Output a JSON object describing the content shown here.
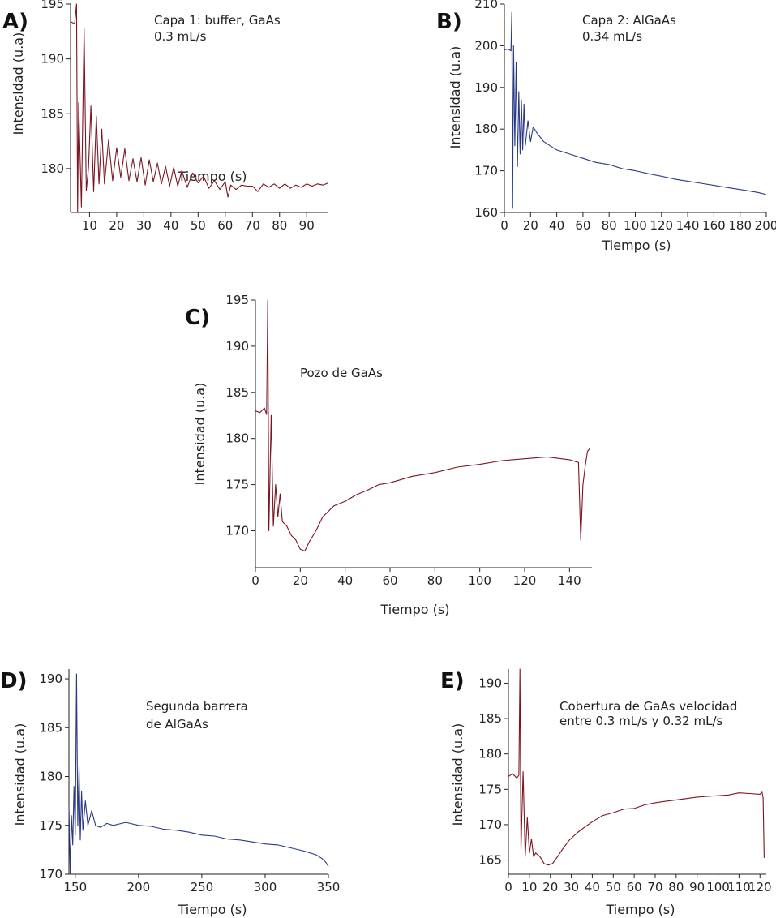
{
  "colors": {
    "red_series": "#7a1522",
    "blue_series": "#2b3a86",
    "axis": "#222222"
  },
  "chart_data": [
    {
      "type": "line",
      "panel": "A)",
      "annotation": [
        "Capa 1: buffer, GaAs",
        "0.3 mL/s"
      ],
      "xlabel": "Tiempo (s)",
      "ylabel": "Intensidad (u.a)",
      "xlim": [
        3,
        98
      ],
      "ylim": [
        176,
        195
      ],
      "xticks": [
        10,
        20,
        30,
        40,
        50,
        60,
        70,
        80,
        90
      ],
      "yticks": [
        180,
        185,
        190,
        195
      ],
      "series": [
        {
          "name": "Capa 1",
          "color": "#7a1522",
          "x": [
            3,
            4.5,
            5.2,
            5.6,
            6,
            7,
            8,
            8.8,
            9.6,
            10.5,
            11.5,
            12.5,
            13.5,
            14.5,
            15.5,
            17,
            18.5,
            20,
            21.5,
            23,
            24.5,
            26,
            27.5,
            29,
            30.5,
            32,
            33.5,
            35,
            36.5,
            38,
            39.5,
            41,
            42.5,
            44,
            46,
            48,
            50,
            52,
            54,
            56,
            58,
            60,
            61,
            62,
            64,
            66,
            68,
            70,
            72,
            74,
            76,
            78,
            80,
            82,
            84,
            86,
            88,
            90,
            92,
            94,
            96,
            98
          ],
          "y": [
            193.4,
            193.2,
            195,
            176,
            186,
            176.5,
            192.8,
            178,
            180,
            185.7,
            177.9,
            184.8,
            178.6,
            183.6,
            178.6,
            182.6,
            178.9,
            181.9,
            179.2,
            181.8,
            178.9,
            180.9,
            178.8,
            181,
            178.5,
            180.8,
            178.8,
            180.5,
            178.6,
            180.2,
            178.4,
            180.1,
            178.4,
            179.8,
            178.3,
            179.6,
            178.7,
            179.3,
            178.2,
            178.9,
            178.1,
            178.8,
            177.4,
            178.5,
            178.1,
            178.5,
            178.4,
            178.4,
            177.9,
            178.6,
            178.3,
            178.6,
            178.2,
            178.6,
            178.2,
            178.5,
            178.3,
            178.6,
            178.4,
            178.6,
            178.5,
            178.7
          ]
        }
      ]
    },
    {
      "type": "line",
      "panel": "B)",
      "annotation": [
        "Capa 2: AlGaAs",
        "0.34 mL/s"
      ],
      "xlabel": "Tiempo (s)",
      "ylabel": "Intensidad (u.a)",
      "xlim": [
        0,
        200
      ],
      "ylim": [
        160,
        210
      ],
      "xticks": [
        0,
        20,
        40,
        60,
        80,
        100,
        120,
        140,
        160,
        180,
        200
      ],
      "yticks": [
        160,
        170,
        180,
        190,
        200,
        210
      ],
      "series": [
        {
          "name": "Capa 2",
          "color": "#2b3a86",
          "x": [
            0,
            3,
            5,
            5.7,
            6.3,
            7,
            8,
            9,
            10,
            11,
            12,
            13,
            14,
            15,
            16,
            18,
            20,
            22,
            25,
            30,
            35,
            40,
            50,
            60,
            70,
            80,
            90,
            100,
            110,
            120,
            130,
            140,
            150,
            160,
            170,
            180,
            190,
            195,
            200
          ],
          "y": [
            199,
            199.2,
            198.8,
            208,
            161,
            200,
            176,
            196,
            171,
            189,
            174,
            187,
            175,
            186,
            176,
            182,
            177,
            180.5,
            179,
            177,
            176,
            175,
            174,
            173,
            172,
            171.5,
            170.5,
            170,
            169.3,
            168.7,
            168,
            167.5,
            167,
            166.5,
            166,
            165.5,
            165,
            164.7,
            164.3
          ]
        }
      ]
    },
    {
      "type": "line",
      "panel": "C)",
      "annotation": [
        "Pozo de GaAs"
      ],
      "xlabel": "Tiempo (s)",
      "ylabel": "Intensidad (u.a)",
      "xlim": [
        0,
        150
      ],
      "ylim": [
        166,
        195
      ],
      "xticks": [
        0,
        20,
        40,
        60,
        80,
        100,
        120,
        140
      ],
      "yticks": [
        170,
        175,
        180,
        185,
        190,
        195
      ],
      "series": [
        {
          "name": "Pozo de GaAs",
          "color": "#7a1522",
          "x": [
            0,
            2,
            4,
            5,
            5.5,
            6,
            7,
            8,
            9,
            10,
            11,
            12,
            14,
            16,
            18,
            20,
            22,
            24,
            27,
            30,
            35,
            40,
            45,
            50,
            55,
            60,
            70,
            80,
            90,
            100,
            110,
            120,
            130,
            140,
            144,
            145,
            146,
            147,
            148,
            149
          ],
          "y": [
            183,
            182.8,
            183.3,
            182.6,
            195,
            170,
            182.5,
            170.5,
            175,
            171.5,
            174,
            171,
            170.5,
            169.5,
            169,
            168,
            167.8,
            168.8,
            170,
            171.5,
            172.7,
            173.2,
            173.9,
            174.4,
            175,
            175.2,
            175.9,
            176.3,
            176.9,
            177.2,
            177.6,
            177.8,
            178,
            177.7,
            177.4,
            169,
            175,
            177,
            178.6,
            178.9
          ]
        }
      ]
    },
    {
      "type": "line",
      "panel": "D)",
      "annotation": [
        "Segunda barrera",
        "de AlGaAs"
      ],
      "xlabel": "Tiempo (s)",
      "ylabel": "Intensidad (u.a)",
      "xlim": [
        145,
        350
      ],
      "ylim": [
        170,
        191
      ],
      "xticks": [
        150,
        200,
        250,
        300,
        350
      ],
      "yticks": [
        170,
        175,
        180,
        185,
        190
      ],
      "series": [
        {
          "name": "Segunda barrera",
          "color": "#2b3a86",
          "x": [
            145,
            146,
            147,
            148,
            149,
            150,
            151,
            152,
            153,
            154,
            155,
            156,
            158,
            160,
            163,
            166,
            170,
            175,
            180,
            190,
            200,
            210,
            220,
            230,
            240,
            250,
            260,
            270,
            280,
            290,
            300,
            310,
            320,
            330,
            340,
            345,
            348,
            350
          ],
          "y": [
            177,
            170,
            176,
            173,
            179,
            174,
            190.5,
            175,
            181,
            173.5,
            178.5,
            174.5,
            177.5,
            175,
            176.5,
            175,
            174.8,
            175.2,
            175,
            175.3,
            175,
            174.9,
            174.6,
            174.5,
            174.3,
            174,
            173.9,
            173.6,
            173.5,
            173.3,
            173.1,
            173,
            172.7,
            172.4,
            172,
            171.6,
            171.2,
            170.8
          ]
        }
      ]
    },
    {
      "type": "line",
      "panel": "E)",
      "annotation": [
        "Cobertura de GaAs velocidad",
        "entre 0.3 mL/s y 0.32 mL/s"
      ],
      "xlabel": "Tiempo (s)",
      "ylabel": "Intensidad (u.a)",
      "xlim": [
        0,
        123
      ],
      "ylim": [
        163,
        192
      ],
      "xticks": [
        0,
        10,
        20,
        30,
        40,
        50,
        60,
        70,
        80,
        90,
        100,
        110,
        120
      ],
      "yticks": [
        165,
        170,
        175,
        180,
        185,
        190
      ],
      "series": [
        {
          "name": "Cobertura de GaAs",
          "color": "#7a1522",
          "x": [
            0,
            2,
            4,
            5,
            5.5,
            6,
            7,
            8,
            9,
            10,
            11,
            12,
            13,
            15,
            17,
            19,
            21,
            23,
            26,
            29,
            33,
            37,
            41,
            45,
            50,
            55,
            60,
            65,
            70,
            75,
            80,
            85,
            90,
            95,
            100,
            105,
            110,
            115,
            120,
            121,
            121.5,
            122
          ],
          "y": [
            176.8,
            177.2,
            176.6,
            177,
            192,
            166.5,
            177.5,
            165.5,
            171,
            166,
            168,
            165.5,
            166,
            165.5,
            164.5,
            164.3,
            164.5,
            165.3,
            166.6,
            167.8,
            168.9,
            169.8,
            170.6,
            171.3,
            171.7,
            172.2,
            172.3,
            172.8,
            173.1,
            173.3,
            173.5,
            173.7,
            173.9,
            174,
            174.1,
            174.2,
            174.5,
            174.4,
            174.3,
            174.6,
            173.8,
            165.3
          ]
        }
      ]
    }
  ]
}
